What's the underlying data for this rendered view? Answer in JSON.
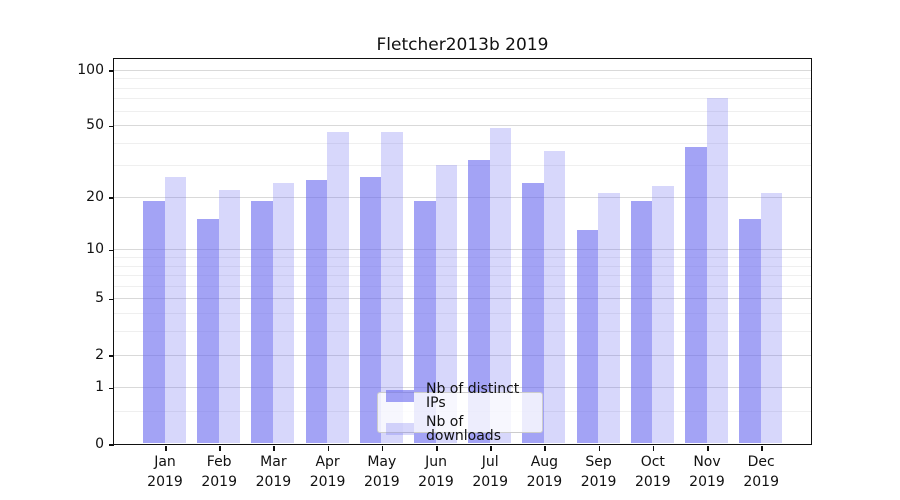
{
  "chart_data": {
    "type": "bar",
    "title": "Fletcher2013b 2019",
    "categories": [
      "Jan 2019",
      "Feb 2019",
      "Mar 2019",
      "Apr 2019",
      "May 2019",
      "Jun 2019",
      "Jul 2019",
      "Aug 2019",
      "Sep 2019",
      "Oct 2019",
      "Nov 2019",
      "Dec 2019"
    ],
    "series": [
      {
        "name": "Nb of distinct IPs",
        "color": "#6666ee",
        "alpha": 0.6,
        "values": [
          19,
          15,
          19,
          25,
          26,
          19,
          32,
          24,
          13,
          19,
          38,
          15
        ]
      },
      {
        "name": "Nb of downloads",
        "color": "#6666ee",
        "alpha": 0.26,
        "values": [
          26,
          22,
          24,
          46,
          46,
          30,
          48,
          36,
          21,
          23,
          70,
          21
        ]
      }
    ],
    "xlabel": "",
    "ylabel": "",
    "yscale": "log1p",
    "ylim": [
      0,
      115
    ],
    "y_major_ticks": [
      0,
      1,
      2,
      5,
      10,
      20,
      50,
      100
    ],
    "y_minor_ticks": [
      0.5,
      3,
      4,
      6,
      7,
      8,
      9,
      30,
      40,
      60,
      70,
      80,
      90
    ],
    "grid": "on",
    "legend_position": "lower center",
    "colors": {
      "background": "#ffffff",
      "axis": "#111111",
      "grid_major": "#d9d9d9",
      "grid_minor": "#efefef",
      "bar_dark": "#a7a7f7",
      "bar_light": "#d8d8f8"
    }
  }
}
